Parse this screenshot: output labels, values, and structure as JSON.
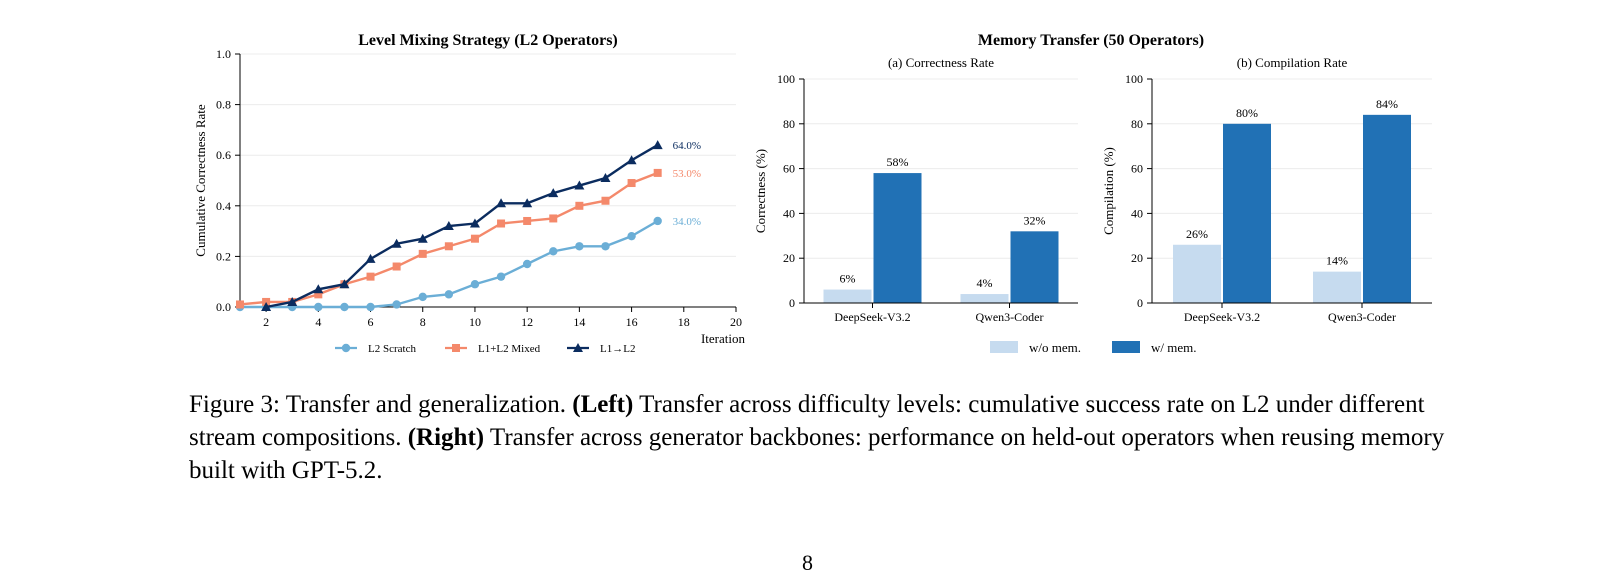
{
  "chart_data": [
    {
      "type": "line",
      "title": "Level Mixing Strategy (L2 Operators)",
      "xlabel": "Iteration",
      "ylabel": "Cumulative Correctness Rate",
      "xlim": [
        1,
        20
      ],
      "ylim": [
        0,
        1.0
      ],
      "xticks": [
        "2",
        "4",
        "6",
        "8",
        "10",
        "12",
        "14",
        "16",
        "18",
        "20"
      ],
      "yticks": [
        "0.0",
        "0.2",
        "0.4",
        "0.6",
        "0.8",
        "1.0"
      ],
      "legend_position": "bottom",
      "series": [
        {
          "name": "L2 Scratch",
          "color": "#6baed6",
          "marker": "circle",
          "x": [
            1,
            2,
            3,
            4,
            5,
            6,
            7,
            8,
            9,
            10,
            11,
            12,
            13,
            14,
            15,
            16,
            17
          ],
          "y": [
            0.0,
            0.0,
            0.0,
            0.0,
            0.0,
            0.0,
            0.01,
            0.04,
            0.05,
            0.09,
            0.12,
            0.17,
            0.22,
            0.24,
            0.24,
            0.28,
            0.34
          ],
          "end_label": "34.0%"
        },
        {
          "name": "L1+L2 Mixed",
          "color": "#f4896b",
          "marker": "square",
          "x": [
            1,
            2,
            3,
            4,
            5,
            6,
            7,
            8,
            9,
            10,
            11,
            12,
            13,
            14,
            15,
            16,
            17
          ],
          "y": [
            0.01,
            0.02,
            0.02,
            0.05,
            0.09,
            0.12,
            0.16,
            0.21,
            0.24,
            0.27,
            0.33,
            0.34,
            0.35,
            0.4,
            0.42,
            0.49,
            0.53
          ],
          "end_label": "53.0%"
        },
        {
          "name": "L1→L2",
          "color": "#0b2c5f",
          "marker": "triangle",
          "x": [
            2,
            3,
            4,
            5,
            6,
            7,
            8,
            9,
            10,
            11,
            12,
            13,
            14,
            15,
            16,
            17
          ],
          "y": [
            0.0,
            0.02,
            0.07,
            0.09,
            0.19,
            0.25,
            0.27,
            0.32,
            0.33,
            0.41,
            0.41,
            0.45,
            0.48,
            0.51,
            0.58,
            0.64
          ],
          "end_label": "64.0%"
        }
      ]
    },
    {
      "type": "bar",
      "suptitle": "Memory Transfer (50 Operators)",
      "title": "(a) Correctness Rate",
      "ylabel": "Correctness (%)",
      "ylim": [
        0,
        100
      ],
      "yticks": [
        "0",
        "20",
        "40",
        "60",
        "80",
        "100"
      ],
      "categories": [
        "DeepSeek-V3.2",
        "Qwen3-Coder"
      ],
      "series": [
        {
          "name": "w/o mem.",
          "color": "#c6dbef",
          "values": [
            6,
            4
          ],
          "labels": [
            "6%",
            "4%"
          ]
        },
        {
          "name": "w/ mem.",
          "color": "#2171b5",
          "values": [
            58,
            32
          ],
          "labels": [
            "58%",
            "32%"
          ]
        }
      ]
    },
    {
      "type": "bar",
      "title": "(b) Compilation Rate",
      "ylabel": "Compilation (%)",
      "ylim": [
        0,
        100
      ],
      "yticks": [
        "0",
        "20",
        "40",
        "60",
        "80",
        "100"
      ],
      "categories": [
        "DeepSeek-V3.2",
        "Qwen3-Coder"
      ],
      "legend_position": "bottom",
      "series": [
        {
          "name": "w/o mem.",
          "color": "#c6dbef",
          "values": [
            26,
            14
          ],
          "labels": [
            "26%",
            "14%"
          ]
        },
        {
          "name": "w/ mem.",
          "color": "#2171b5",
          "values": [
            80,
            84
          ],
          "labels": [
            "80%",
            "84%"
          ]
        }
      ]
    }
  ],
  "caption": {
    "label": "Figure 3: Transfer and generalization. ",
    "left_tag": "(Left)",
    "left_text": " Transfer across difficulty levels: cumulative success rate on L2 under different stream compositions. ",
    "right_tag": "(Right)",
    "right_text": " Transfer across generator backbones: performance on held-out operators when reusing memory built with GPT-5.2."
  },
  "page_number": "8"
}
